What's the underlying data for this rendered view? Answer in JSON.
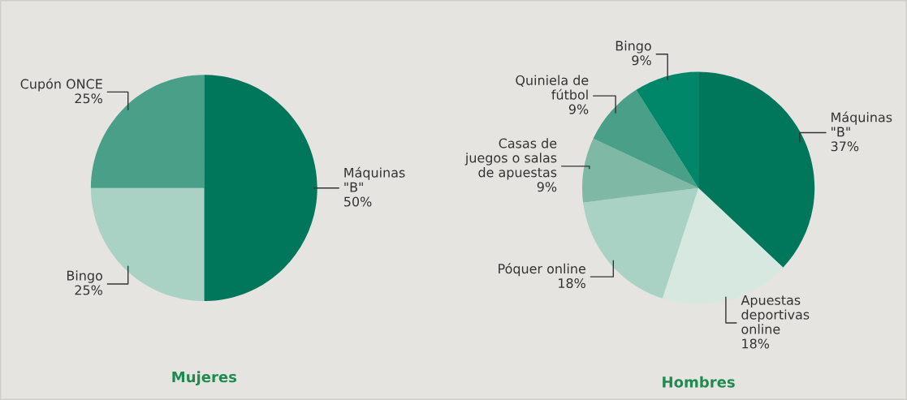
{
  "chart_data": [
    {
      "type": "pie",
      "title": "Mujeres",
      "categories": [
        "Máquinas \"B\"",
        "Bingo",
        "Cupón ONCE"
      ],
      "values": [
        50,
        25,
        25
      ],
      "value_labels": [
        "50%",
        "25%",
        "25%"
      ],
      "colors": [
        "#00775a",
        "#a9d2c4",
        "#4a9f88"
      ],
      "legend": false
    },
    {
      "type": "pie",
      "title": "Hombres",
      "categories": [
        "Máquinas \"B\"",
        "Apuestas deportivas online",
        "Póquer online",
        "Casas de juegos o salas de apuestas",
        "Quiniela de fútbol",
        "Bingo"
      ],
      "values": [
        37,
        18,
        18,
        9,
        9,
        9
      ],
      "value_labels": [
        "37%",
        "18%",
        "18%",
        "9%",
        "9%",
        "9%"
      ],
      "colors": [
        "#00775a",
        "#d6e8e0",
        "#a9d2c4",
        "#7fb8a5",
        "#4a9f88",
        "#00876a"
      ],
      "legend": false
    }
  ]
}
